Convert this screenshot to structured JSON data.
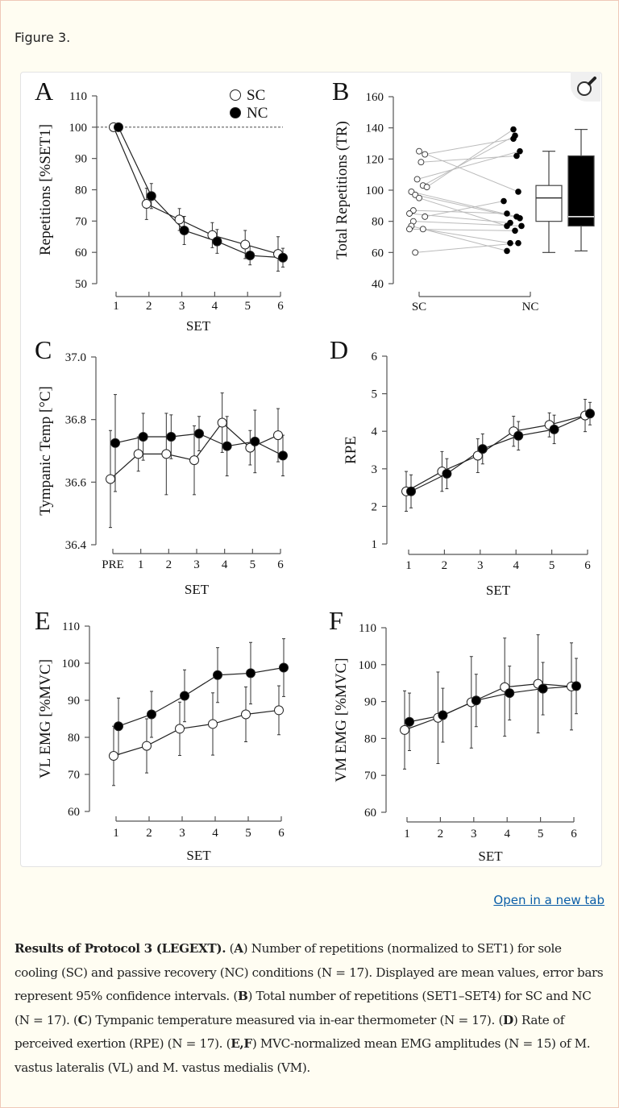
{
  "figure_title": "Figure 3.",
  "open_link": "Open in a new tab",
  "icons": {
    "zoom": "magnifier-icon"
  },
  "caption": [
    {
      "text": "Results of Protocol 3 (LEGEXT).",
      "bold": true
    },
    {
      "text": " (",
      "bold": false
    },
    {
      "text": "A",
      "bold": true
    },
    {
      "text": ") Number of repetitions (normalized to SET1) for sole cooling (SC) and passive recovery (NC) conditions (N = 17). Displayed are mean values, error bars represent 95% confidence intervals. (",
      "bold": false
    },
    {
      "text": "B",
      "bold": true
    },
    {
      "text": ") Total number of repetitions (SET1–SET4) for SC and NC (N = 17). (",
      "bold": false
    },
    {
      "text": "C",
      "bold": true
    },
    {
      "text": ") Tympanic temperature measured via in-ear thermometer (N = 17). (",
      "bold": false
    },
    {
      "text": "D",
      "bold": true
    },
    {
      "text": ") Rate of perceived exertion (RPE) (N = 17). (",
      "bold": false
    },
    {
      "text": "E,F",
      "bold": true
    },
    {
      "text": ") MVC-normalized mean EMG amplitudes (N = 15) of M. vastus lateralis (VL) and M. vastus medialis (VM).",
      "bold": false
    }
  ],
  "chart_data": [
    {
      "panel": "A",
      "type": "line",
      "ylabel": "Repetitions [%SET1]",
      "xlabel": "SET",
      "ylim": [
        50,
        110
      ],
      "yticks": [
        "50",
        "60",
        "70",
        "80",
        "90",
        "100",
        "110"
      ],
      "categories": [
        "1",
        "2",
        "3",
        "4",
        "5",
        "6"
      ],
      "reference_line": 100,
      "legend": {
        "position": "top-right",
        "entries": [
          "SC",
          "NC"
        ]
      },
      "series": [
        {
          "name": "SC",
          "marker": "open",
          "values": [
            100,
            75.5,
            70.5,
            65.5,
            62.5,
            59.5
          ],
          "ci_halfwidth": [
            0,
            5,
            3.5,
            4,
            4.5,
            5.5
          ]
        },
        {
          "name": "NC",
          "marker": "filled",
          "values": [
            100,
            78,
            67,
            63.5,
            59,
            58.3
          ],
          "ci_halfwidth": [
            0,
            4,
            4.5,
            3.8,
            3,
            3
          ]
        }
      ]
    },
    {
      "panel": "B",
      "type": "scatter+box",
      "ylabel": "Total Repetitions (TR)",
      "ylim": [
        40,
        160
      ],
      "yticks": [
        "40",
        "60",
        "80",
        "100",
        "120",
        "140",
        "160"
      ],
      "categories": [
        "SC",
        "NC"
      ],
      "points": {
        "SC": [
          125,
          123,
          118,
          107,
          103,
          102,
          99,
          97,
          95,
          87,
          85,
          83,
          80,
          77,
          75,
          75,
          60
        ],
        "NC": [
          139,
          135,
          133,
          125,
          122,
          99,
          93,
          85,
          83,
          82,
          79,
          77,
          77,
          74,
          66,
          66,
          61
        ]
      },
      "boxes": [
        {
          "name": "SC",
          "fill": "#ffffff",
          "min": 60,
          "q1": 80,
          "median": 95,
          "q3": 103,
          "max": 125
        },
        {
          "name": "NC",
          "fill": "#000000",
          "min": 61,
          "q1": 77,
          "median": 83,
          "q3": 122,
          "max": 139
        }
      ]
    },
    {
      "panel": "C",
      "type": "line",
      "ylabel": "Tympanic Temp [°C]",
      "xlabel": "SET",
      "ylim": [
        36.4,
        37.0
      ],
      "yticks": [
        "36.4",
        "36.6",
        "36.8",
        "37.0"
      ],
      "categories": [
        "PRE",
        "1",
        "2",
        "3",
        "4",
        "5",
        "6"
      ],
      "series": [
        {
          "name": "SC",
          "marker": "open",
          "values": [
            36.61,
            36.69,
            36.69,
            36.67,
            36.79,
            36.71,
            36.75
          ],
          "ci_halfwidth": [
            0.155,
            0.055,
            0.13,
            0.11,
            0.095,
            0.055,
            0.085
          ]
        },
        {
          "name": "NC",
          "marker": "filled",
          "values": [
            36.725,
            36.745,
            36.745,
            36.755,
            36.715,
            36.73,
            36.685
          ],
          "ci_halfwidth": [
            0.155,
            0.075,
            0.07,
            0.055,
            0.095,
            0.1,
            0.065
          ]
        }
      ]
    },
    {
      "panel": "D",
      "type": "line",
      "ylabel": "RPE",
      "xlabel": "SET",
      "ylim": [
        1,
        6
      ],
      "yticks": [
        "1",
        "2",
        "3",
        "4",
        "5",
        "6"
      ],
      "categories": [
        "1",
        "2",
        "3",
        "4",
        "5",
        "6"
      ],
      "series": [
        {
          "name": "SC",
          "marker": "open",
          "values": [
            2.4,
            2.93,
            3.35,
            4.0,
            4.17,
            4.42
          ],
          "ci_halfwidth": [
            0.53,
            0.53,
            0.45,
            0.4,
            0.32,
            0.43
          ]
        },
        {
          "name": "NC",
          "marker": "filled",
          "values": [
            2.4,
            2.87,
            3.53,
            3.88,
            4.05,
            4.47
          ],
          "ci_halfwidth": [
            0.44,
            0.4,
            0.4,
            0.38,
            0.38,
            0.3
          ]
        }
      ]
    },
    {
      "panel": "E",
      "type": "line",
      "ylabel": "VL EMG [%MVC]",
      "xlabel": "SET",
      "ylim": [
        60,
        110
      ],
      "yticks": [
        "60",
        "70",
        "80",
        "90",
        "100",
        "110"
      ],
      "categories": [
        "1",
        "2",
        "3",
        "4",
        "5",
        "6"
      ],
      "series": [
        {
          "name": "SC",
          "marker": "open",
          "values": [
            75,
            77.7,
            82.3,
            83.6,
            86.2,
            87.3
          ],
          "ci_halfwidth": [
            8,
            7.3,
            7.2,
            8.4,
            7.4,
            6.6
          ]
        },
        {
          "name": "NC",
          "marker": "filled",
          "values": [
            83,
            86.2,
            91.2,
            96.8,
            97.3,
            98.8
          ],
          "ci_halfwidth": [
            7.6,
            6.2,
            7,
            7.4,
            8.3,
            7.8
          ]
        }
      ]
    },
    {
      "panel": "F",
      "type": "line",
      "ylabel": "VM EMG [%MVC]",
      "xlabel": "SET",
      "ylim": [
        60,
        110
      ],
      "yticks": [
        "60",
        "70",
        "80",
        "90",
        "100",
        "110"
      ],
      "categories": [
        "1",
        "2",
        "3",
        "4",
        "5",
        "6"
      ],
      "series": [
        {
          "name": "SC",
          "marker": "open",
          "values": [
            82.3,
            85.6,
            89.8,
            93.9,
            94.8,
            94.1
          ],
          "ci_halfwidth": [
            10.6,
            12.4,
            12.4,
            13.3,
            13.3,
            11.8
          ]
        },
        {
          "name": "NC",
          "marker": "filled",
          "values": [
            84.5,
            86.3,
            90.3,
            92.3,
            93.5,
            94.2
          ],
          "ci_halfwidth": [
            7.8,
            7.3,
            7.1,
            7.3,
            7.1,
            7.5
          ]
        }
      ]
    }
  ]
}
